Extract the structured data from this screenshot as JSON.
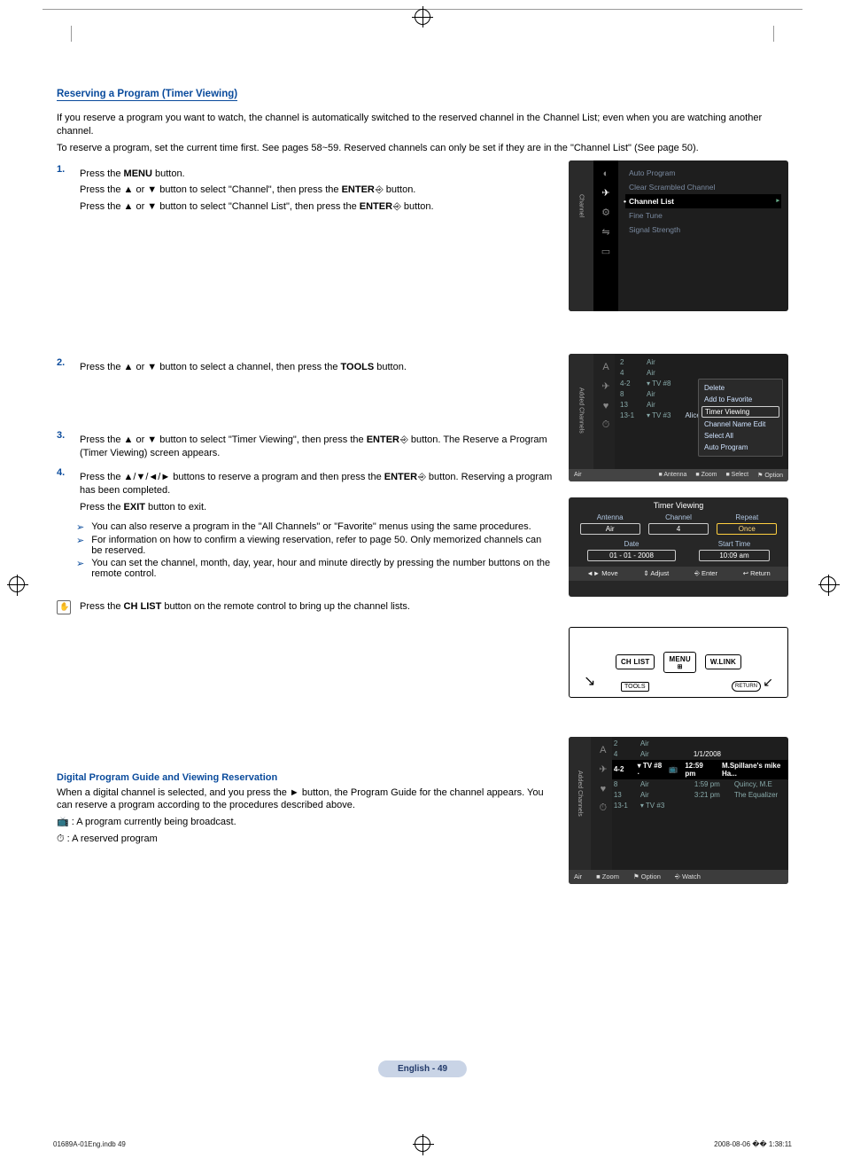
{
  "colors": {
    "heading": "#0a4b9c",
    "osd_bg": "#1e1e1e",
    "footer_pill": "#c9d4e6"
  },
  "section_title": "Reserving a Program (Timer Viewing)",
  "intro1": "If you reserve a program you want to watch, the channel is automatically switched to the reserved channel in the Channel List; even when you are watching another channel.",
  "intro2": "To reserve a program, set the current time first. See pages 58~59. Reserved channels can only be set if they are in the \"Channel List\" (See page 50).",
  "step1_a": "Press the ",
  "step1_menu": "MENU",
  "step1_b": " button.",
  "step1_c": "Press the ▲ or ▼ button to select \"Channel\", then press the ",
  "step1_enter": "ENTER",
  "step1_d": " button.",
  "step1_e": "Press the ▲ or ▼ button to select \"Channel List\", then press the ",
  "step1_f": " button.",
  "step2": "Press the ▲ or ▼ button to select a channel, then press the ",
  "step2_tools": "TOOLS",
  "step2b": " button.",
  "step3_a": "Press the ▲ or ▼ button to select \"Timer Viewing\", then press the ",
  "step3_b": " button. The Reserve a Program (Timer Viewing) screen appears.",
  "step4_a": "Press the ▲/▼/◄/► buttons to reserve a program and then press the ",
  "step4_b": " button. Reserving a program has been completed.",
  "step4_c": "Press the ",
  "step4_exit": "EXIT",
  "step4_d": " button to exit.",
  "note1": "You can also reserve a program in the \"All Channels\" or \"Favorite\" menus using the same procedures.",
  "note2": "For information on how to confirm a viewing reservation, refer to page 50. Only memorized channels can be reserved.",
  "note3": "You can set the channel, month, day, year, hour and minute directly by pressing the number buttons on the remote control.",
  "tip_a": "Press the ",
  "tip_chlist": "CH LIST",
  "tip_b": " button on the remote control to bring up the channel lists.",
  "sub_title": "Digital Program Guide and Viewing Reservation",
  "sub_p": "When a digital channel is selected, and you press the ► button, the Program Guide for the channel appears. You can reserve a program according to the procedures described above.",
  "legend1": "📺 : A program currently being broadcast.",
  "legend2": "⏱ : A reserved program",
  "osd_menu": {
    "vlabel": "Channel",
    "items": [
      "Auto Program",
      "Clear Scrambled Channel",
      "Channel List",
      "Fine Tune",
      "Signal Strength"
    ],
    "highlight_idx": 2
  },
  "ch_panel": {
    "vlabel": "Added Channels",
    "rows": [
      {
        "n": "2",
        "t": "Air"
      },
      {
        "n": "4",
        "t": "Air"
      },
      {
        "n": "4-2",
        "t": "▾ TV #8"
      },
      {
        "n": "8",
        "t": "Air"
      },
      {
        "n": "13",
        "t": "Air"
      },
      {
        "n": "13-1",
        "t": "▾ TV #3",
        "note": "Alice"
      }
    ],
    "tools": [
      "Delete",
      "Add to Favorite",
      "Timer Viewing",
      "Channel Name Edit",
      "Select All",
      "Auto Program"
    ],
    "tools_hl_idx": 2,
    "footer": {
      "l1": "Air",
      "ant": "■ Antenna",
      "zoom": "■ Zoom",
      "sel": "■ Select",
      "opt": "⚑ Option"
    }
  },
  "timer_panel": {
    "title": "Timer Viewing",
    "antenna_l": "Antenna",
    "antenna_v": "Air",
    "channel_l": "Channel",
    "channel_v": "4",
    "repeat_l": "Repeat",
    "repeat_v": "Once",
    "date_l": "Date",
    "date_v": "01 - 01 - 2008",
    "start_l": "Start Time",
    "start_v": "10:09 am",
    "footer": {
      "move": "◄► Move",
      "adjust": "⇕ Adjust",
      "enter": "⎆ Enter",
      "return": "↩ Return"
    }
  },
  "remote": {
    "b1": "CH LIST",
    "b2": "MENU",
    "b3": "W.LINK",
    "tools": "TOOLS",
    "ret": "RETURN"
  },
  "epg": {
    "vlabel": "Added Channels",
    "date": "1/1/2008",
    "rows": [
      {
        "n": "2",
        "t": "Air"
      },
      {
        "n": "4",
        "t": "Air"
      }
    ],
    "hl": {
      "n": "4-2",
      "t": "▾ TV #8 ·",
      "icon": "📺",
      "time": "12:59 pm",
      "title": "M.Spillane's mike Ha..."
    },
    "after": [
      {
        "n": "8",
        "t": "Air",
        "time": "1:59 pm",
        "title": "Quincy, M.E"
      },
      {
        "n": "13",
        "t": "Air",
        "time": "3:21 pm",
        "title": "The Equalizer"
      },
      {
        "n": "13-1",
        "t": "▾ TV #3"
      }
    ],
    "footer": {
      "air": "Air",
      "zoom": "■ Zoom",
      "opt": "⚑ Option",
      "watch": "⎆ Watch"
    }
  },
  "page_footer": "English - 49",
  "indb_left": "01689A-01Eng.indb   49",
  "indb_right": "2008-08-06   �� 1:38:11"
}
